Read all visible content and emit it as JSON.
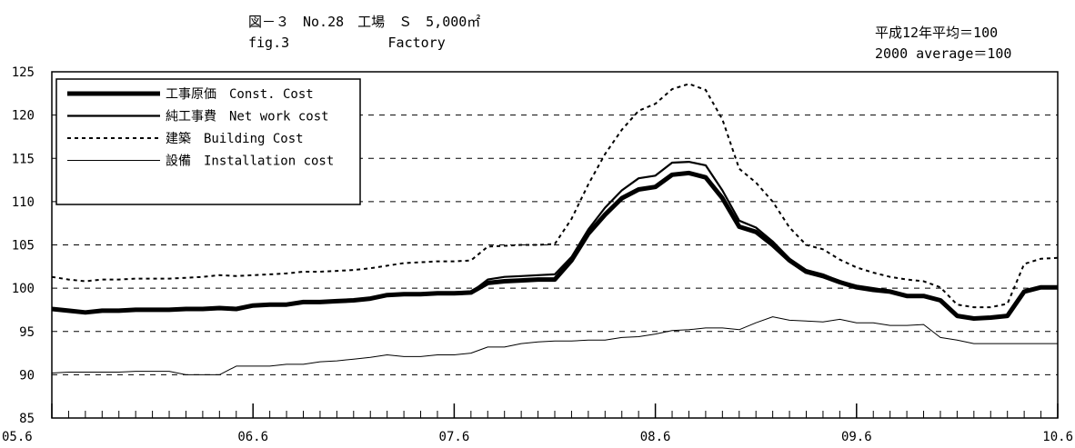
{
  "chart_data": {
    "type": "line",
    "title": "図－３　No.28　工場　Ｓ　5,000㎡",
    "subtitle": "fig.3            Factory",
    "base_note_jp": "平成12年平均＝100",
    "base_note_en": "2000 average＝100",
    "xlabel": "",
    "ylabel": "",
    "ylim": [
      85,
      125
    ],
    "yticks": [
      85,
      90,
      95,
      100,
      105,
      110,
      115,
      120,
      125
    ],
    "xlim": [
      "2005-06",
      "2010-06"
    ],
    "xtick_labels": [
      "05.6",
      "06.6",
      "07.6",
      "08.6",
      "09.6",
      "10.6"
    ],
    "grid": "horizontal-dashed",
    "legend_position": "top-left",
    "x": [
      "2005-06",
      "2005-07",
      "2005-08",
      "2005-09",
      "2005-10",
      "2005-11",
      "2005-12",
      "2006-01",
      "2006-02",
      "2006-03",
      "2006-04",
      "2006-05",
      "2006-06",
      "2006-07",
      "2006-08",
      "2006-09",
      "2006-10",
      "2006-11",
      "2006-12",
      "2007-01",
      "2007-02",
      "2007-03",
      "2007-04",
      "2007-05",
      "2007-06",
      "2007-07",
      "2007-08",
      "2007-09",
      "2007-10",
      "2007-11",
      "2007-12",
      "2008-01",
      "2008-02",
      "2008-03",
      "2008-04",
      "2008-05",
      "2008-06",
      "2008-07",
      "2008-08",
      "2008-09",
      "2008-10",
      "2008-11",
      "2008-12",
      "2009-01",
      "2009-02",
      "2009-03",
      "2009-04",
      "2009-05",
      "2009-06",
      "2009-07",
      "2009-08",
      "2009-09",
      "2009-10",
      "2009-11",
      "2009-12",
      "2010-01",
      "2010-02",
      "2010-03",
      "2010-04",
      "2010-05",
      "2010-06"
    ],
    "series": [
      {
        "name": "工事原価　Const. Cost",
        "style": "heavy",
        "color": "#000000",
        "values": [
          97.6,
          97.4,
          97.2,
          97.4,
          97.4,
          97.5,
          97.5,
          97.5,
          97.6,
          97.6,
          97.7,
          97.6,
          98.0,
          98.1,
          98.1,
          98.4,
          98.4,
          98.5,
          98.6,
          98.8,
          99.2,
          99.3,
          99.3,
          99.4,
          99.4,
          99.5,
          100.6,
          100.8,
          100.9,
          101.0,
          101.0,
          103.2,
          106.3,
          108.5,
          110.4,
          111.4,
          111.7,
          113.1,
          113.3,
          112.8,
          110.4,
          107.1,
          106.5,
          105.0,
          103.2,
          101.9,
          101.4,
          100.7,
          100.1,
          99.8,
          99.6,
          99.1,
          99.1,
          98.6,
          96.8,
          96.5,
          96.6,
          96.8,
          99.6,
          100.1,
          100.1
        ]
      },
      {
        "name": "純工事費　Net work cost",
        "style": "medium",
        "color": "#000000",
        "values": [
          97.6,
          97.4,
          97.2,
          97.4,
          97.4,
          97.5,
          97.5,
          97.5,
          97.6,
          97.6,
          97.7,
          97.6,
          98.0,
          98.1,
          98.1,
          98.4,
          98.4,
          98.5,
          98.6,
          98.8,
          99.2,
          99.3,
          99.3,
          99.4,
          99.4,
          99.5,
          101.0,
          101.3,
          101.4,
          101.5,
          101.6,
          103.6,
          106.8,
          109.3,
          111.3,
          112.7,
          113.0,
          114.5,
          114.6,
          114.2,
          111.3,
          107.8,
          107.0,
          105.4,
          103.4,
          102.1,
          101.6,
          100.8,
          100.3,
          100.0,
          99.7,
          99.2,
          99.2,
          98.7,
          96.9,
          96.6,
          96.7,
          96.9,
          99.7,
          100.2,
          100.2
        ]
      },
      {
        "name": "建築　Building Cost",
        "style": "dotted",
        "color": "#000000",
        "values": [
          101.3,
          101.0,
          100.8,
          101.0,
          101.0,
          101.1,
          101.1,
          101.1,
          101.2,
          101.3,
          101.5,
          101.4,
          101.5,
          101.6,
          101.7,
          101.9,
          101.9,
          102.0,
          102.1,
          102.3,
          102.6,
          102.9,
          103.0,
          103.1,
          103.1,
          103.2,
          104.8,
          104.9,
          105.0,
          105.0,
          105.1,
          108.0,
          112.0,
          115.5,
          118.3,
          120.5,
          121.3,
          123.0,
          123.6,
          122.9,
          119.5,
          113.8,
          112.2,
          110.0,
          107.0,
          105.0,
          104.5,
          103.3,
          102.4,
          101.8,
          101.3,
          101.0,
          100.8,
          100.1,
          98.1,
          97.8,
          97.8,
          98.2,
          102.8,
          103.4,
          103.5
        ]
      },
      {
        "name": "設備　Installation cost",
        "style": "thin",
        "color": "#000000",
        "values": [
          90.2,
          90.3,
          90.3,
          90.3,
          90.3,
          90.4,
          90.4,
          90.4,
          90.0,
          90.0,
          90.0,
          91.0,
          91.0,
          91.0,
          91.2,
          91.2,
          91.5,
          91.6,
          91.8,
          92.0,
          92.3,
          92.1,
          92.1,
          92.3,
          92.3,
          92.5,
          93.2,
          93.2,
          93.6,
          93.8,
          93.9,
          93.9,
          94.0,
          94.0,
          94.3,
          94.4,
          94.7,
          95.1,
          95.2,
          95.4,
          95.4,
          95.2,
          96.0,
          96.7,
          96.3,
          96.2,
          96.1,
          96.4,
          96.0,
          96.0,
          95.7,
          95.7,
          95.8,
          94.3,
          94.0,
          93.6,
          93.6,
          93.6,
          93.6,
          93.6,
          93.6
        ]
      }
    ]
  }
}
